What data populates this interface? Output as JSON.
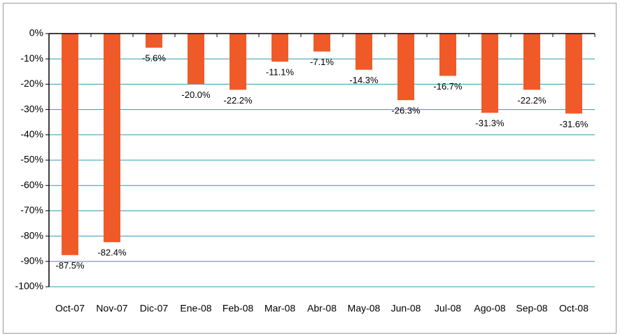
{
  "chart_data": {
    "type": "bar",
    "categories": [
      "Oct-07",
      "Nov-07",
      "Dic-07",
      "Ene-08",
      "Feb-08",
      "Mar-08",
      "Abr-08",
      "May-08",
      "Jun-08",
      "Jul-08",
      "Ago-08",
      "Sep-08",
      "Oct-08"
    ],
    "values": [
      -87.5,
      -82.4,
      -5.6,
      -20.0,
      -22.2,
      -11.1,
      -7.1,
      -14.3,
      -26.3,
      -16.7,
      -31.3,
      -22.2,
      -31.6
    ],
    "value_labels": [
      "-87.5%",
      "-82.4%",
      "-5.6%",
      "-20.0%",
      "-22.2%",
      "-11.1%",
      "-7.1%",
      "-14.3%",
      "-26.3%",
      "-16.7%",
      "-31.3%",
      "-22.2%",
      "-31.6%"
    ],
    "color": "#f05a28",
    "ylim": [
      -100,
      0
    ],
    "yticks": [
      {
        "value": 0,
        "label": "0%"
      },
      {
        "value": -10,
        "label": "-10%"
      },
      {
        "value": -20,
        "label": "-20%"
      },
      {
        "value": -30,
        "label": "-30%"
      },
      {
        "value": -40,
        "label": "-40%"
      },
      {
        "value": -50,
        "label": "-50%"
      },
      {
        "value": -60,
        "label": "-60%"
      },
      {
        "value": -70,
        "label": "-70%"
      },
      {
        "value": -80,
        "label": "-80%"
      },
      {
        "value": -90,
        "label": "-90%"
      },
      {
        "value": -100,
        "label": "-100%"
      }
    ],
    "grid": true,
    "grid_color": "#2a9db0"
  }
}
